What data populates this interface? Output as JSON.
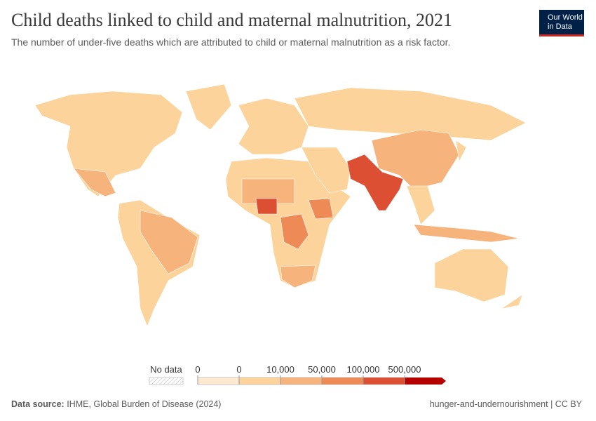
{
  "header": {
    "title": "Child deaths linked to child and maternal malnutrition, 2021",
    "subtitle": "The number of under-five deaths which are attributed to child or maternal malnutrition as a risk factor."
  },
  "logo": {
    "line1": "Our World",
    "line2": "in Data"
  },
  "legend": {
    "no_data_label": "No data",
    "bins": [
      "0",
      "0",
      "10,000",
      "50,000",
      "100,000",
      "500,000"
    ],
    "colors": [
      "#fde9cf",
      "#fbd39b",
      "#f6b37b",
      "#ee8a55",
      "#dd4f33",
      "#b30000"
    ]
  },
  "footer": {
    "source_label": "Data source:",
    "source": "IHME, Global Burden of Disease (2024)",
    "topic": "hunger-and-undernourishment | CC BY"
  }
}
